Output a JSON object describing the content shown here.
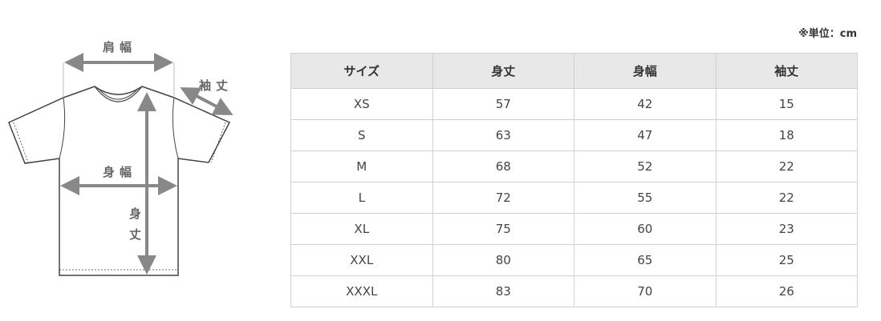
{
  "diagram": {
    "shoulder": "肩幅",
    "sleeve": "袖丈",
    "width": "身幅",
    "length_1": "身",
    "length_2": "丈"
  },
  "unit": "※単位：cm",
  "table": {
    "headers": [
      "サイズ",
      "身丈",
      "身幅",
      "袖丈"
    ],
    "rows": [
      [
        "XS",
        "57",
        "42",
        "15"
      ],
      [
        "S",
        "63",
        "47",
        "18"
      ],
      [
        "M",
        "68",
        "52",
        "22"
      ],
      [
        "L",
        "72",
        "55",
        "22"
      ],
      [
        "XL",
        "75",
        "60",
        "23"
      ],
      [
        "XXL",
        "80",
        "65",
        "25"
      ],
      [
        "XXXL",
        "83",
        "70",
        "26"
      ]
    ]
  }
}
